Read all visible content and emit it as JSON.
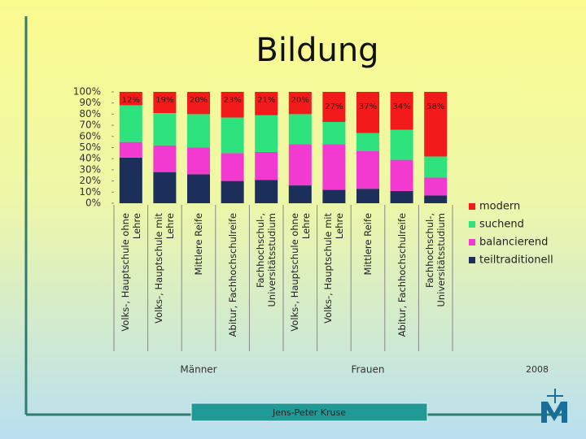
{
  "title": "Bildung",
  "chart_data": {
    "type": "stacked-bar",
    "categories": [
      "Volks-, Hauptschule ohne Lehre",
      "Volks-, Hauptschule mit Lehre",
      "Mittlere Reife",
      "Abitur, Fachhochschulreife",
      "Fachhochschul-, Universitätsstudium",
      "Volks-, Hauptschule ohne Lehre",
      "Volks-, Hauptschule mit Lehre",
      "Mittlere Reife",
      "Abitur, Fachhochschulreife",
      "Fachhochschul-, Universitätsstudium"
    ],
    "groups": [
      "Männer",
      "Frauen"
    ],
    "series": [
      {
        "name": "teiltraditionell",
        "color": "#1b2f5a",
        "values": [
          41,
          28,
          26,
          20,
          21,
          16,
          12,
          13,
          11,
          7
        ]
      },
      {
        "name": "balancierend",
        "color": "#f23ad0",
        "values": [
          14,
          24,
          24,
          25,
          25,
          37,
          41,
          34,
          28,
          16
        ]
      },
      {
        "name": "suchend",
        "color": "#2ee37d",
        "values": [
          33,
          29,
          30,
          32,
          33,
          27,
          20,
          16,
          27,
          19
        ]
      },
      {
        "name": "modern",
        "color": "#f21a1a",
        "values": [
          12,
          19,
          20,
          23,
          21,
          20,
          27,
          37,
          34,
          58
        ],
        "value_labels": [
          "12%",
          "19%",
          "20%",
          "23%",
          "21%",
          "20%",
          "27%",
          "37%",
          "34%",
          "58%"
        ]
      }
    ],
    "ylim": [
      0,
      100
    ],
    "yticks": [
      {
        "value": 0,
        "label": "0%"
      },
      {
        "value": 10,
        "label": "10%"
      },
      {
        "value": 20,
        "label": "20%"
      },
      {
        "value": 30,
        "label": "30%"
      },
      {
        "value": 40,
        "label": "40%"
      },
      {
        "value": 50,
        "label": "50%"
      },
      {
        "value": 60,
        "label": "60%"
      },
      {
        "value": 70,
        "label": "70%"
      },
      {
        "value": 80,
        "label": "80%"
      },
      {
        "value": 90,
        "label": "90%"
      },
      {
        "value": 100,
        "label": "100%"
      }
    ],
    "note": "2008"
  },
  "footer": "Jens-Peter Kruse"
}
